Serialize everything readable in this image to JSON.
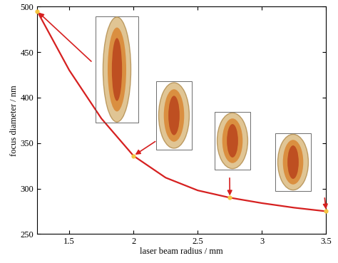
{
  "chart_data": {
    "type": "line",
    "x_label": "laser beam radius / mm",
    "y_label": "focus diameter / nm",
    "x": [
      1.25,
      1.5,
      1.75,
      2.0,
      2.25,
      2.5,
      2.75,
      3.0,
      3.25,
      3.5
    ],
    "values": [
      495,
      430,
      377,
      336,
      312,
      298,
      290,
      284,
      279,
      275
    ],
    "color": "#d62020",
    "marked_points": {
      "x": [
        1.25,
        2.0,
        2.75,
        3.5
      ],
      "values": [
        495,
        336,
        290,
        275
      ],
      "color": "#f5c542",
      "marker": "o"
    },
    "xlim": [
      1.25,
      3.5
    ],
    "xticks": [
      1.5,
      2,
      2.5,
      3,
      3.5
    ],
    "ylim": [
      250,
      500
    ],
    "yticks": [
      250,
      300,
      350,
      400,
      450,
      500
    ],
    "grid": false
  }
}
